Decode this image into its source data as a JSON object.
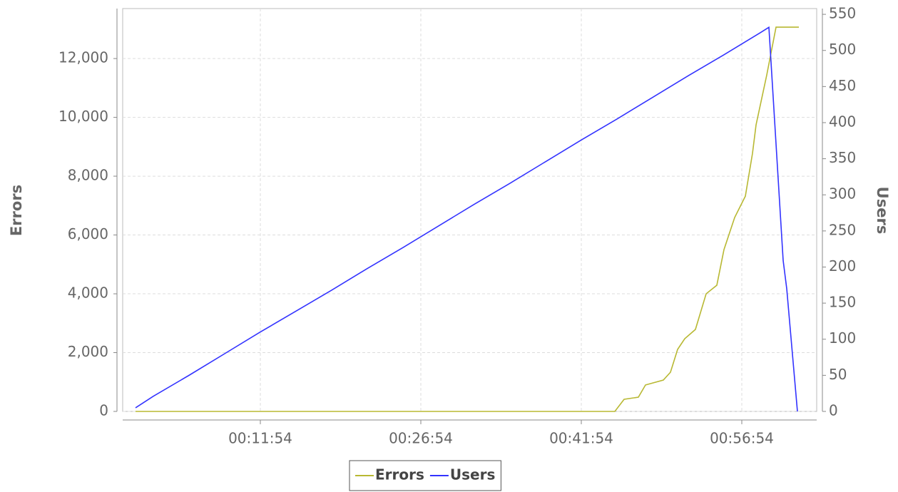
{
  "chart_data": {
    "type": "line",
    "xlim": [
      -58,
      3834
    ],
    "xticks": [
      {
        "value": 714,
        "label": "00:11:54"
      },
      {
        "value": 1614,
        "label": "00:26:54"
      },
      {
        "value": 2514,
        "label": "00:41:54"
      },
      {
        "value": 3414,
        "label": "00:56:54"
      }
    ],
    "ylabel": "Errors",
    "ylim": [
      0,
      13700
    ],
    "yticks": [
      0,
      {
        "value": 2000,
        "label": "2,000"
      },
      {
        "value": 4000,
        "label": "4,000"
      },
      {
        "value": 6000,
        "label": "6,000"
      },
      {
        "value": 8000,
        "label": "8,000"
      },
      {
        "value": 10000,
        "label": "10,000"
      },
      {
        "value": 12000,
        "label": "12,000"
      }
    ],
    "y2label": "Users",
    "y2lim": [
      0,
      558
    ],
    "y2ticks": [
      0,
      50,
      100,
      150,
      200,
      250,
      300,
      350,
      400,
      450,
      500,
      550
    ],
    "grid": true,
    "legend": "bottom",
    "series": [
      {
        "name": "Errors",
        "color": "#b8b832",
        "x": [
          14,
          2702,
          2754,
          2834,
          2874,
          2974,
          3014,
          3054,
          3094,
          3154,
          3214,
          3274,
          3314,
          3374,
          3434,
          3474,
          3494,
          3554,
          3606,
          3734
        ],
        "values": [
          0,
          0,
          412,
          485,
          900,
          1067,
          1333,
          2109,
          2473,
          2788,
          4000,
          4291,
          5503,
          6594,
          7321,
          8776,
          9745,
          11442,
          13067,
          13067
        ]
      },
      {
        "name": "Users",
        "color": "#3333ff",
        "axis": "y2",
        "x": [
          14,
          114,
          314,
          514,
          714,
          914,
          1114,
          1314,
          1514,
          1714,
          1914,
          2114,
          2314,
          2514,
          2714,
          2914,
          3114,
          3314,
          3514,
          3566,
          3646,
          3666,
          3726
        ],
        "values": [
          5,
          21,
          50,
          80,
          110,
          139,
          168,
          198,
          227,
          257,
          287,
          316,
          346,
          376,
          405,
          435,
          465,
          494,
          524,
          532,
          209,
          170,
          0
        ]
      }
    ]
  }
}
